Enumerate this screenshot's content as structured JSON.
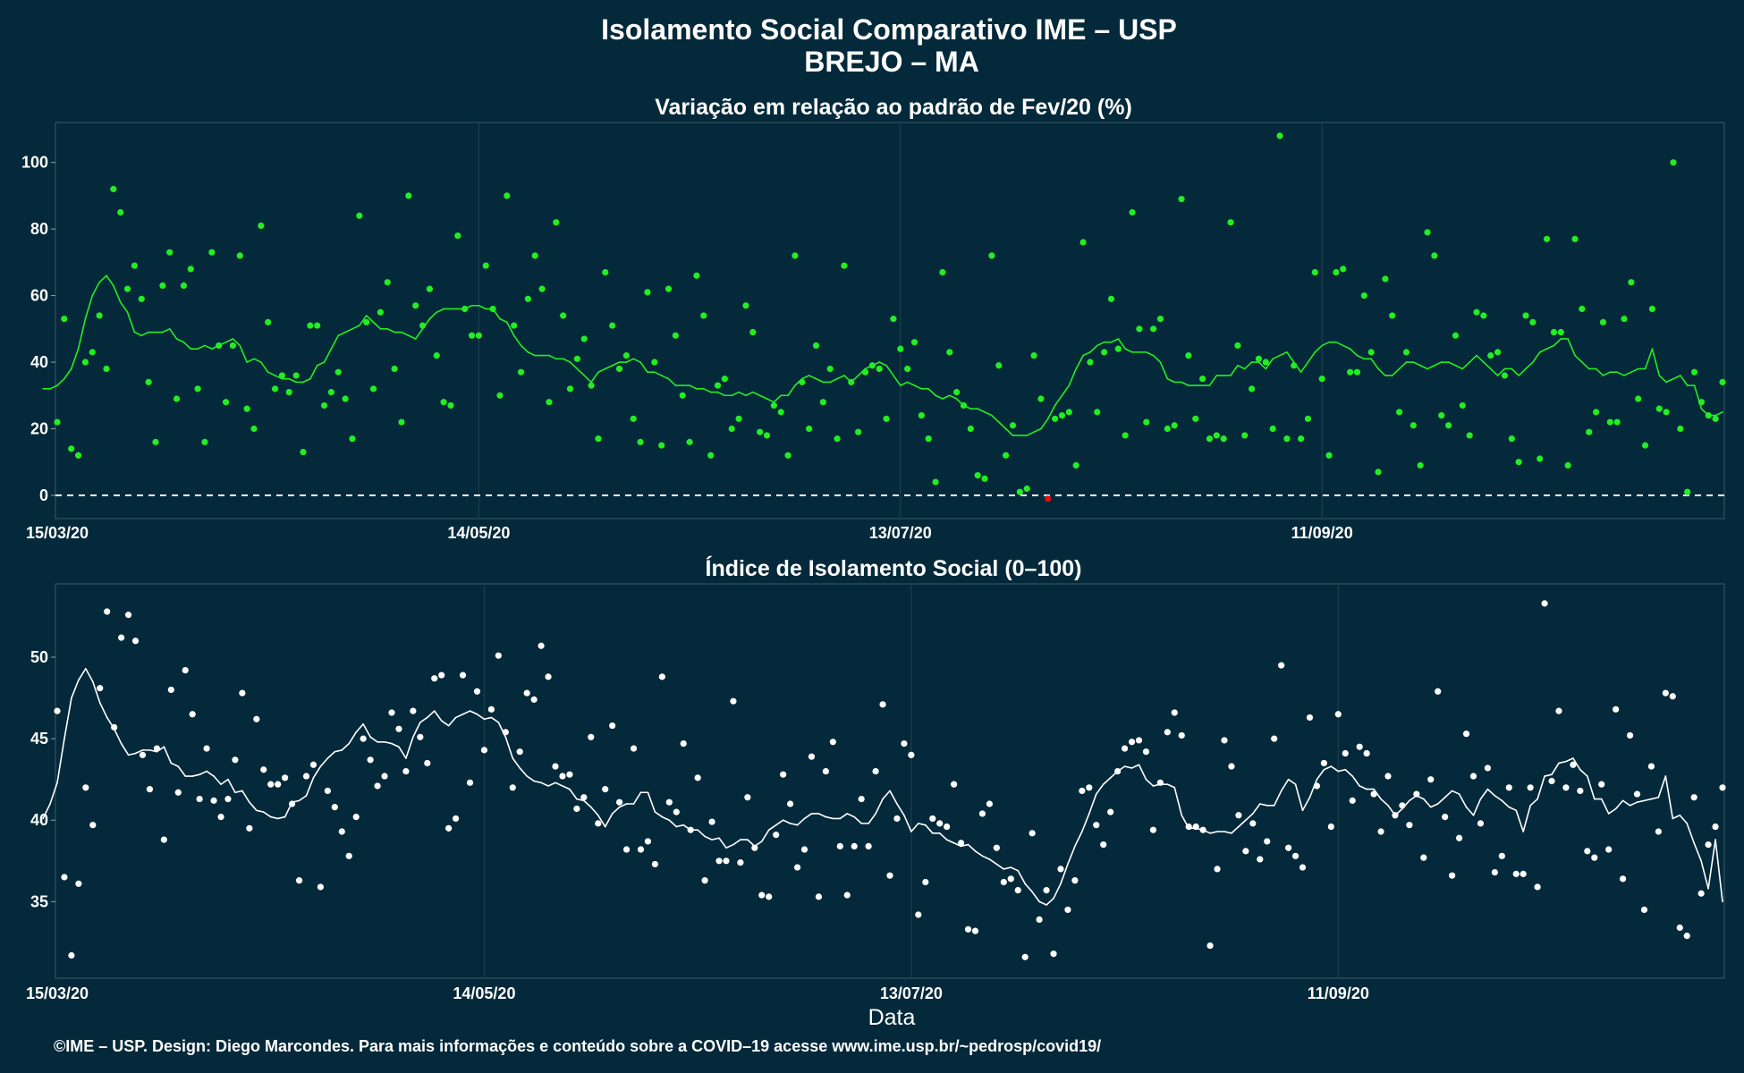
{
  "title": "Isolamento Social Comparativo IME – USP",
  "subtitle": "BREJO – MA",
  "footer": "©IME – USP. Design: Diego Marcondes. Para mais informações e conteúdo sobre a COVID–19 acesse www.ime.usp.br/~pedrosp/covid19/",
  "colors": {
    "background": "#04293a",
    "grid": "#23414f",
    "top_points": "#22ee22",
    "top_line": "#22ee22",
    "negative": "#e01010",
    "bottom_points": "#ffffff",
    "bottom_line": "#ffffff",
    "text": "#ffffff"
  },
  "chart_data": [
    {
      "type": "scatter",
      "title": "Variação em relação ao padrão de Fev/20 (%)",
      "xlabel": "",
      "ylabel": "",
      "x_start": "2020-03-15",
      "x_ticks": [
        {
          "date": "2020-03-15",
          "label": "15/03/20"
        },
        {
          "date": "2020-05-14",
          "label": "14/05/20"
        },
        {
          "date": "2020-07-13",
          "label": "13/07/20"
        },
        {
          "date": "2020-09-11",
          "label": "11/09/20"
        }
      ],
      "ylim": [
        -7,
        112
      ],
      "y_ticks": [
        0,
        20,
        40,
        60,
        80,
        100
      ],
      "reference_line": 0,
      "grid": true,
      "series": [
        {
          "kind": "points",
          "values": [
            22,
            53,
            14,
            12,
            40,
            43,
            54,
            38,
            92,
            85,
            62,
            69,
            59,
            34,
            16,
            63,
            73,
            29,
            63,
            68,
            32,
            16,
            73,
            45,
            28,
            45,
            72,
            26,
            20,
            81,
            52,
            32,
            36,
            31,
            36,
            13,
            51,
            51,
            27,
            31,
            37,
            29,
            17,
            84,
            52,
            32,
            55,
            64,
            38,
            22,
            90,
            57,
            51,
            62,
            42,
            28,
            27,
            78,
            56,
            48,
            48,
            69,
            56,
            30,
            90,
            51,
            37,
            59,
            72,
            62,
            28,
            82,
            54,
            32,
            41,
            47,
            33,
            17,
            67,
            51,
            38,
            42,
            23,
            16,
            61,
            40,
            15,
            62,
            48,
            30,
            16,
            66,
            54,
            12,
            33,
            35,
            20,
            23,
            57,
            49,
            19,
            18,
            27,
            25,
            12,
            72,
            34,
            20,
            45,
            28,
            38,
            17,
            69,
            34,
            19,
            37,
            39,
            38,
            23,
            53,
            44,
            38,
            46,
            24,
            17,
            4,
            67,
            43,
            31,
            27,
            20,
            6,
            5,
            72,
            39,
            12,
            21,
            1,
            2,
            42,
            29,
            -1,
            23,
            24,
            25,
            9,
            76,
            40,
            25,
            43,
            59,
            44,
            18,
            85,
            50,
            22,
            50,
            53,
            20,
            21,
            89,
            42,
            23,
            35,
            17,
            18,
            17,
            82,
            45,
            18,
            32,
            41,
            40,
            20,
            108,
            17,
            39,
            17,
            23,
            67,
            35,
            12,
            67,
            68,
            37,
            37,
            60,
            43,
            7,
            65,
            54,
            25,
            43,
            21,
            9,
            79,
            72,
            24,
            21,
            48,
            27,
            18,
            55,
            54,
            42,
            43,
            36,
            17,
            10,
            54,
            52,
            11,
            77,
            49,
            49,
            9,
            77,
            56,
            19,
            25,
            52,
            22,
            22,
            53,
            64,
            29,
            15,
            56,
            26,
            25,
            100,
            20,
            1,
            37,
            28,
            24,
            23,
            34
          ]
        },
        {
          "kind": "line",
          "values": [
            32,
            32,
            33,
            35,
            38,
            44,
            53,
            60,
            64,
            66,
            63,
            58,
            55,
            49,
            48,
            49,
            49,
            49,
            50,
            47,
            46,
            44,
            44,
            45,
            44,
            45,
            46,
            47,
            45,
            40,
            41,
            40,
            37,
            36,
            35,
            35,
            34,
            34,
            35,
            39,
            40,
            44,
            48,
            49,
            50,
            51,
            54,
            52,
            50,
            50,
            49,
            49,
            48,
            47,
            50,
            53,
            55,
            56,
            56,
            56,
            56,
            57,
            57,
            56,
            56,
            53,
            52,
            48,
            45,
            43,
            42,
            42,
            42,
            41,
            41,
            40,
            38,
            36,
            34,
            37,
            38,
            39,
            40,
            40,
            41,
            40,
            37,
            37,
            36,
            35,
            33,
            33,
            33,
            32,
            32,
            31,
            31,
            30,
            30,
            31,
            30,
            31,
            30,
            29,
            28,
            30,
            30,
            33,
            35,
            36,
            35,
            34,
            34,
            35,
            36,
            34,
            36,
            38,
            39,
            40,
            39,
            36,
            33,
            34,
            33,
            32,
            32,
            30,
            29,
            30,
            29,
            27,
            26,
            26,
            25,
            24,
            22,
            20,
            18,
            18,
            18,
            19,
            20,
            23,
            27,
            30,
            33,
            38,
            42,
            43,
            45,
            46,
            46,
            47,
            44,
            43,
            43,
            43,
            42,
            40,
            35,
            34,
            34,
            33,
            33,
            33,
            33,
            36,
            36,
            36,
            39,
            38,
            40,
            40,
            38,
            41,
            42,
            43,
            40,
            37,
            40,
            43,
            45,
            46,
            46,
            45,
            44,
            42,
            41,
            41,
            38,
            36,
            36,
            38,
            40,
            40,
            39,
            38,
            39,
            40,
            40,
            39,
            38,
            40,
            42,
            40,
            38,
            36,
            38,
            38,
            36,
            38,
            40,
            43,
            44,
            45,
            47,
            47,
            42,
            40,
            38,
            38,
            36,
            37,
            37,
            36,
            37,
            38,
            38,
            44,
            36,
            34,
            35,
            36,
            33,
            33,
            26,
            24,
            24,
            25
          ]
        }
      ]
    },
    {
      "type": "scatter",
      "title": "Índice de Isolamento Social (0–100)",
      "xlabel": "Data",
      "ylabel": "",
      "x_start": "2020-03-15",
      "x_ticks": [
        {
          "date": "2020-03-15",
          "label": "15/03/20"
        },
        {
          "date": "2020-05-14",
          "label": "14/05/20"
        },
        {
          "date": "2020-07-13",
          "label": "13/07/20"
        },
        {
          "date": "2020-09-11",
          "label": "11/09/20"
        }
      ],
      "ylim": [
        30.3,
        54.5
      ],
      "y_ticks": [
        35,
        40,
        45,
        50
      ],
      "grid": true,
      "series": [
        {
          "kind": "points",
          "values": [
            46.7,
            36.5,
            31.7,
            36.1,
            42,
            39.7,
            48.1,
            52.8,
            45.7,
            51.2,
            52.6,
            51,
            44,
            41.9,
            44.4,
            38.8,
            48,
            41.7,
            49.2,
            46.5,
            41.3,
            44.4,
            41.2,
            40.2,
            41.3,
            43.7,
            47.8,
            39.5,
            46.2,
            43.1,
            42.2,
            42.2,
            42.6,
            41,
            36.3,
            42.7,
            43.4,
            35.9,
            41.8,
            40.8,
            39.3,
            37.8,
            40.2,
            45,
            43.7,
            42.1,
            42.7,
            46.6,
            45.6,
            43,
            46.7,
            45.1,
            43.5,
            48.7,
            48.9,
            39.5,
            40.1,
            48.9,
            42.3,
            47.9,
            44.3,
            46.8,
            50.1,
            45.4,
            42,
            44.2,
            47.8,
            47.4,
            50.7,
            48.8,
            43.3,
            42.7,
            42.8,
            40.7,
            41.4,
            45.1,
            39.8,
            41.9,
            45.8,
            41.1,
            38.2,
            44.4,
            38.2,
            38.7,
            37.3,
            48.8,
            41.1,
            40.5,
            44.7,
            39.4,
            42.6,
            36.3,
            39.9,
            37.5,
            37.5,
            47.3,
            37.4,
            41.4,
            38.3,
            35.4,
            35.3,
            39.1,
            42.8,
            41,
            37.1,
            38.2,
            43.9,
            35.3,
            43,
            44.8,
            38.4,
            35.4,
            38.4,
            41.3,
            38.4,
            43,
            47.1,
            36.6,
            40.1,
            44.7,
            44,
            34.2,
            36.2,
            40.1,
            39.8,
            39.6,
            42.2,
            38.6,
            33.3,
            33.2,
            40.4,
            41,
            38.3,
            36.2,
            36.4,
            35.7,
            31.6,
            39.2,
            33.9,
            35.7,
            31.8,
            37,
            34.5,
            36.3,
            41.8,
            42,
            39.7,
            38.5,
            40.5,
            43,
            44.4,
            44.8,
            44.9,
            44.2,
            39.4,
            42.3,
            45.4,
            46.6,
            45.2,
            39.6,
            39.6,
            39.4,
            32.3,
            37,
            44.9,
            43.3,
            40.3,
            38.1,
            39.8,
            37.6,
            38.7,
            45,
            49.5,
            38.3,
            37.8,
            37.1,
            46.3,
            42.1,
            43.5,
            39.6,
            46.5,
            44.1,
            41.2,
            44.5,
            44.1,
            41.6,
            39.3,
            42.7,
            40.3,
            40.9,
            39.7,
            41.6,
            37.7,
            42.5,
            47.9,
            40.2,
            36.6,
            38.9,
            45.3,
            42.7,
            39.8,
            43.2,
            36.8,
            37.8,
            42,
            36.7,
            36.7,
            42,
            35.9,
            53.3,
            42.4,
            46.7,
            42,
            43.4,
            41.8,
            38.1,
            37.7,
            42.2,
            38.2,
            46.8,
            36.4,
            45.2,
            41.6,
            34.5,
            43.3,
            39.3,
            47.8,
            47.6,
            33.4,
            32.9,
            41.4,
            35.5,
            38.5,
            39.6,
            42
          ]
        },
        {
          "kind": "line",
          "values": [
            40.1,
            41,
            42.3,
            45,
            47.5,
            48.6,
            49.3,
            48.5,
            47.2,
            46.3,
            45.6,
            44.7,
            44,
            44.1,
            44.3,
            44.3,
            44.2,
            44.5,
            43.5,
            43.3,
            42.7,
            42.7,
            42.8,
            43,
            42.7,
            42.2,
            42.5,
            41.7,
            41.8,
            41.1,
            40.6,
            40.5,
            40.2,
            40.1,
            40.2,
            41.1,
            41.2,
            41.5,
            42.6,
            43.3,
            43.8,
            44.2,
            44.3,
            44.7,
            45.4,
            45.9,
            45.1,
            44.8,
            44.8,
            44.7,
            44.5,
            43.8,
            45.1,
            46,
            46.3,
            46.7,
            46.1,
            45.8,
            46.3,
            46.5,
            46.7,
            46.5,
            46.2,
            46.3,
            46,
            45.1,
            43.8,
            43.2,
            42.7,
            42.4,
            42.3,
            42.1,
            42.3,
            42.1,
            41.9,
            41.3,
            41.2,
            40.8,
            40.3,
            39.6,
            40.4,
            40.8,
            41,
            41,
            41.7,
            41.7,
            40.5,
            40.2,
            40,
            39.6,
            39.7,
            39.4,
            39.4,
            39,
            38.8,
            38.9,
            38.3,
            38.5,
            38.8,
            38.8,
            38.4,
            38.7,
            39.4,
            39.7,
            40,
            39.8,
            39.7,
            40.1,
            40.4,
            40.4,
            40.2,
            40.1,
            40.1,
            40.4,
            40.2,
            39.8,
            39.8,
            40.4,
            41.3,
            41.8,
            41,
            40.3,
            39.3,
            39.8,
            39.7,
            39.2,
            39.2,
            38.8,
            38.6,
            38.4,
            38.5,
            38.1,
            37.8,
            37.6,
            37.3,
            37,
            37.1,
            36.9,
            36.1,
            35.6,
            35,
            34.8,
            35.2,
            36.1,
            37.3,
            38.4,
            39.3,
            40.4,
            41.6,
            42.2,
            42.6,
            43,
            43.3,
            43.2,
            43.4,
            42.5,
            42.1,
            42.2,
            42.2,
            42,
            40.3,
            39.5,
            39.5,
            39.4,
            39.2,
            39.3,
            39.3,
            39.2,
            39.6,
            40,
            40.4,
            41,
            40.9,
            40.9,
            41.8,
            42.5,
            42.2,
            40.6,
            41.4,
            42.5,
            43.1,
            43.3,
            43,
            43.1,
            42.7,
            42.1,
            41.9,
            41.9,
            41.3,
            40.9,
            40.3,
            40.7,
            41.2,
            41.5,
            41.3,
            40.8,
            41,
            41.4,
            41.8,
            41.6,
            40.8,
            40.3,
            41.3,
            41.9,
            41.5,
            41.2,
            40.8,
            40.6,
            39.3,
            40.9,
            41.3,
            42.7,
            42.8,
            43.5,
            43.6,
            43.8,
            43.1,
            42.7,
            41.3,
            41.3,
            40.4,
            40.7,
            41.2,
            40.9,
            41.1,
            41.2,
            41.3,
            41.4,
            42.7,
            40.1,
            40.3,
            39.8,
            38.6,
            37.5,
            35.8,
            38.8,
            35
          ]
        }
      ]
    }
  ]
}
